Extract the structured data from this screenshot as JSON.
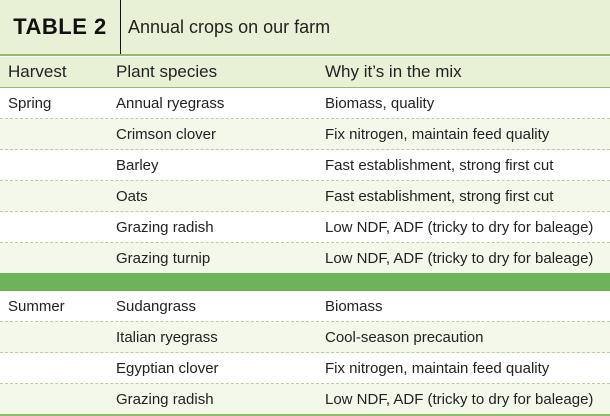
{
  "table": {
    "number": "TABLE 2",
    "title": "Annual crops on our farm"
  },
  "columns": [
    "Harvest",
    "Plant species",
    "Why it’s in the mix"
  ],
  "groups": [
    {
      "harvest": "Spring",
      "rows": [
        {
          "species": "Annual ryegrass",
          "reason": "Biomass, quality"
        },
        {
          "species": "Crimson clover",
          "reason": "Fix nitrogen, maintain feed quality"
        },
        {
          "species": "Barley",
          "reason": "Fast establishment, strong first cut"
        },
        {
          "species": "Oats",
          "reason": "Fast establishment, strong first cut"
        },
        {
          "species": "Grazing radish",
          "reason": "Low NDF, ADF (tricky to dry for baleage)"
        },
        {
          "species": "Grazing turnip",
          "reason": "Low NDF, ADF (tricky to dry for baleage)"
        }
      ]
    },
    {
      "harvest": "Summer",
      "rows": [
        {
          "species": "Sudangrass",
          "reason": "Biomass"
        },
        {
          "species": "Italian ryegrass",
          "reason": "Cool-season precaution"
        },
        {
          "species": "Egyptian clover",
          "reason": "Fix nitrogen, maintain feed quality"
        },
        {
          "species": "Grazing radish",
          "reason": "Low NDF, ADF (tricky to dry for baleage)"
        }
      ]
    }
  ]
}
